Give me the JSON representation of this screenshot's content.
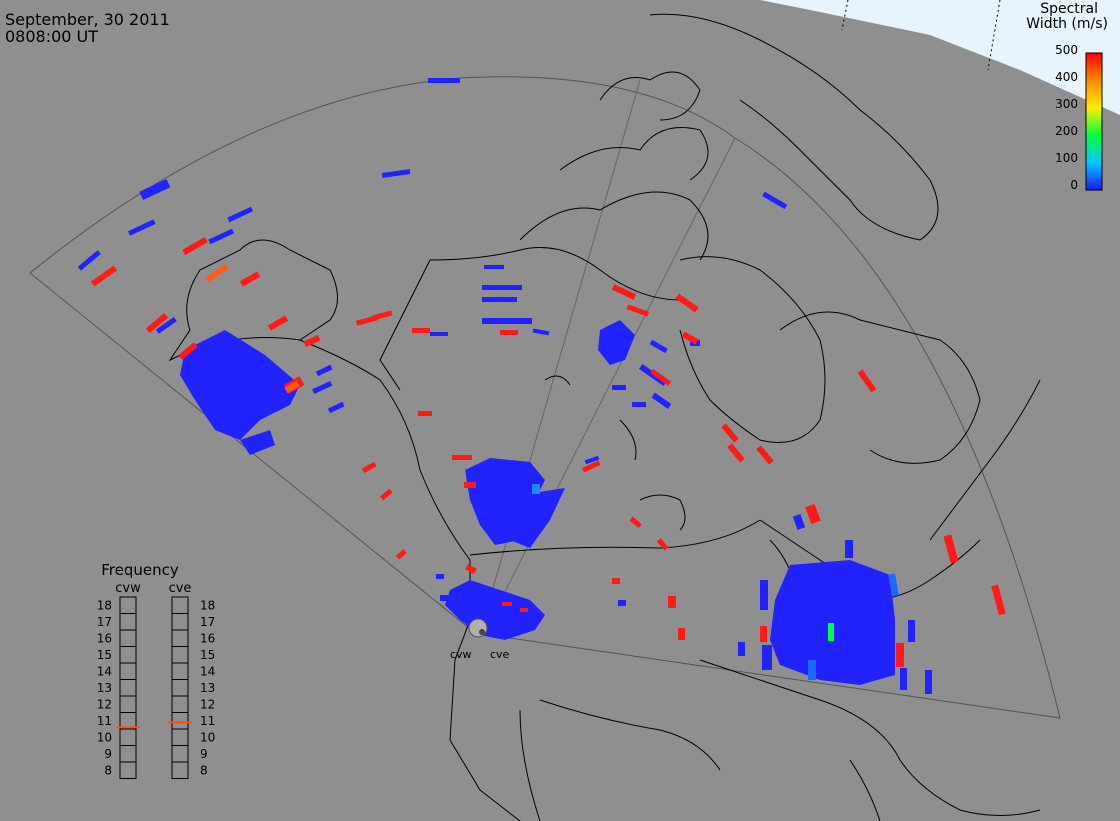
{
  "header": {
    "date": "September, 30 2011",
    "time": "0808:00 UT"
  },
  "legend": {
    "title_line1": "Spectral",
    "title_line2": "Width (m/s)",
    "ticks": [
      "500",
      "400",
      "300",
      "200",
      "100",
      "0"
    ],
    "colors": [
      "#1a1aff",
      "#00c8ff",
      "#00ff3c",
      "#ffee00",
      "#ff8800",
      "#ff0000"
    ]
  },
  "frequency": {
    "title": "Frequency",
    "left_label": "cvw",
    "right_label": "cve",
    "scale": [
      "18",
      "17",
      "16",
      "15",
      "14",
      "13",
      "12",
      "11",
      "10",
      "9",
      "8"
    ],
    "cvw_mhz": 10.6,
    "cve_mhz": 10.9
  },
  "radar_labels": {
    "west": "cvw",
    "east": "cve"
  },
  "colors": {
    "background": "#8f8f8f",
    "ocean_ice": "#e8f4fb",
    "scatter_blue": "#2222ff",
    "scatter_red": "#ff1a1a",
    "scatter_orange": "#ff5a1a"
  }
}
